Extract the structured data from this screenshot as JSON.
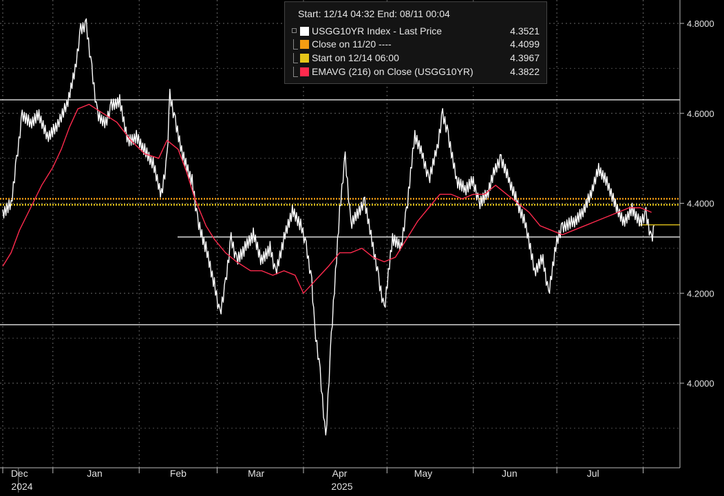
{
  "chart_data": {
    "type": "line",
    "title": "",
    "header": "Start: 12/14 04:32 End: 08/11 00:04",
    "ylim": [
      3.85,
      4.84
    ],
    "y_ticks": [
      "4.8000",
      "4.6000",
      "4.4000",
      "4.2000",
      "4.0000"
    ],
    "y_tick_values": [
      4.8,
      4.6,
      4.4,
      4.2,
      4.0
    ],
    "x_tick_labels": [
      "Dec",
      "Jan",
      "Feb",
      "Mar",
      "Apr",
      "May",
      "Jun",
      "Jul"
    ],
    "x_year_labels": [
      "2024",
      "2025"
    ],
    "x_date_range": [
      "2024-12-14",
      "2025-08-11"
    ],
    "x_ticks_dates": [
      "2024-12-14",
      "2025-01-01",
      "2025-02-01",
      "2025-03-01",
      "2025-04-01",
      "2025-05-01",
      "2025-06-01",
      "2025-07-01",
      "2025-08-01"
    ],
    "grid": true,
    "legend_position": "top-center",
    "legend": [
      {
        "label": "USGG10YR Index - Last Price",
        "value": "4.3521",
        "color": "#ffffff"
      },
      {
        "label": "Close on 11/20 ----",
        "value": "4.4099",
        "color": "#f39c12"
      },
      {
        "label": "Start on 12/14 06:00",
        "value": "4.3967",
        "color": "#e6c619"
      },
      {
        "label": "EMAVG (216)  on Close (USGG10YR)",
        "value": "4.3822",
        "color": "#ff2a4d"
      }
    ],
    "series": [
      {
        "name": "USGG10YR Index - Last Price",
        "color": "#ffffff",
        "x": [
          "2024-12-14",
          "2024-12-17",
          "2024-12-19",
          "2024-12-21",
          "2024-12-24",
          "2024-12-27",
          "2024-12-30",
          "2025-01-02",
          "2025-01-06",
          "2025-01-09",
          "2025-01-11",
          "2025-01-13",
          "2025-01-15",
          "2025-01-17",
          "2025-01-20",
          "2025-01-22",
          "2025-01-25",
          "2025-01-28",
          "2025-01-31",
          "2025-02-03",
          "2025-02-06",
          "2025-02-09",
          "2025-02-11",
          "2025-02-12",
          "2025-02-14",
          "2025-02-17",
          "2025-02-20",
          "2025-02-22",
          "2025-02-25",
          "2025-02-28",
          "2025-03-02",
          "2025-03-04",
          "2025-03-06",
          "2025-03-08",
          "2025-03-11",
          "2025-03-14",
          "2025-03-17",
          "2025-03-20",
          "2025-03-22",
          "2025-03-25",
          "2025-03-28",
          "2025-03-31",
          "2025-04-02",
          "2025-04-04",
          "2025-04-05",
          "2025-04-07",
          "2025-04-09",
          "2025-04-11",
          "2025-04-14",
          "2025-04-16",
          "2025-04-18",
          "2025-04-21",
          "2025-04-23",
          "2025-04-26",
          "2025-04-28",
          "2025-04-30",
          "2025-05-03",
          "2025-05-06",
          "2025-05-08",
          "2025-05-11",
          "2025-05-14",
          "2025-05-16",
          "2025-05-19",
          "2025-05-21",
          "2025-05-23",
          "2025-05-26",
          "2025-05-29",
          "2025-06-01",
          "2025-06-03",
          "2025-06-06",
          "2025-06-09",
          "2025-06-11",
          "2025-06-14",
          "2025-06-17",
          "2025-06-20",
          "2025-06-23",
          "2025-06-26",
          "2025-06-28",
          "2025-07-01",
          "2025-07-03",
          "2025-07-07",
          "2025-07-10",
          "2025-07-13",
          "2025-07-16",
          "2025-07-19",
          "2025-07-22",
          "2025-07-25",
          "2025-07-28",
          "2025-07-31",
          "2025-08-02",
          "2025-08-04",
          "2025-08-05"
        ],
        "y": [
          4.38,
          4.4,
          4.5,
          4.6,
          4.58,
          4.6,
          4.55,
          4.57,
          4.62,
          4.7,
          4.79,
          4.8,
          4.7,
          4.6,
          4.58,
          4.62,
          4.63,
          4.54,
          4.55,
          4.52,
          4.49,
          4.42,
          4.5,
          4.64,
          4.58,
          4.5,
          4.45,
          4.36,
          4.3,
          4.22,
          4.15,
          4.22,
          4.32,
          4.27,
          4.3,
          4.33,
          4.27,
          4.3,
          4.24,
          4.32,
          4.38,
          4.35,
          4.3,
          4.22,
          4.12,
          4.02,
          3.87,
          4.1,
          4.38,
          4.5,
          4.35,
          4.38,
          4.4,
          4.3,
          4.23,
          4.16,
          4.32,
          4.3,
          4.38,
          4.55,
          4.5,
          4.45,
          4.52,
          4.6,
          4.55,
          4.45,
          4.43,
          4.45,
          4.4,
          4.42,
          4.48,
          4.5,
          4.45,
          4.4,
          4.35,
          4.25,
          4.28,
          4.2,
          4.32,
          4.35,
          4.36,
          4.38,
          4.42,
          4.48,
          4.45,
          4.4,
          4.36,
          4.39,
          4.36,
          4.38,
          4.32,
          4.35
        ]
      },
      {
        "name": "EMAVG (216)  on Close (USGG10YR)",
        "color": "#ff2a4d",
        "x": [
          "2024-12-14",
          "2024-12-17",
          "2024-12-20",
          "2024-12-24",
          "2024-12-28",
          "2025-01-01",
          "2025-01-04",
          "2025-01-07",
          "2025-01-10",
          "2025-01-14",
          "2025-01-19",
          "2025-01-24",
          "2025-01-29",
          "2025-02-03",
          "2025-02-08",
          "2025-02-11",
          "2025-02-15",
          "2025-02-18",
          "2025-02-21",
          "2025-02-25",
          "2025-02-28",
          "2025-03-04",
          "2025-03-08",
          "2025-03-13",
          "2025-03-17",
          "2025-03-21",
          "2025-03-25",
          "2025-03-29",
          "2025-04-01",
          "2025-04-04",
          "2025-04-07",
          "2025-04-10",
          "2025-04-14",
          "2025-04-18",
          "2025-04-22",
          "2025-04-26",
          "2025-04-30",
          "2025-05-04",
          "2025-05-08",
          "2025-05-12",
          "2025-05-16",
          "2025-05-20",
          "2025-05-24",
          "2025-05-28",
          "2025-06-01",
          "2025-06-05",
          "2025-06-09",
          "2025-06-13",
          "2025-06-17",
          "2025-06-21",
          "2025-06-25",
          "2025-06-29",
          "2025-07-03",
          "2025-07-07",
          "2025-07-11",
          "2025-07-15",
          "2025-07-19",
          "2025-07-23",
          "2025-07-27",
          "2025-07-31",
          "2025-08-04"
        ],
        "y": [
          4.26,
          4.29,
          4.34,
          4.39,
          4.44,
          4.48,
          4.52,
          4.57,
          4.61,
          4.62,
          4.6,
          4.58,
          4.54,
          4.51,
          4.5,
          4.54,
          4.52,
          4.47,
          4.41,
          4.35,
          4.32,
          4.29,
          4.27,
          4.25,
          4.25,
          4.24,
          4.25,
          4.24,
          4.2,
          4.22,
          4.24,
          4.26,
          4.29,
          4.29,
          4.3,
          4.28,
          4.27,
          4.28,
          4.32,
          4.36,
          4.39,
          4.42,
          4.42,
          4.41,
          4.42,
          4.42,
          4.44,
          4.42,
          4.4,
          4.38,
          4.35,
          4.34,
          4.33,
          4.34,
          4.35,
          4.36,
          4.37,
          4.38,
          4.39,
          4.39,
          4.38
        ]
      }
    ],
    "reference_lines": [
      {
        "name": "Close on 11/20 ----",
        "y": 4.4099,
        "color": "#f39c12",
        "style": "dotted"
      },
      {
        "name": "Start on 12/14 06:00",
        "y": 4.3967,
        "color": "#e6c619",
        "style": "dotted"
      },
      {
        "name": "last-price-marker",
        "y": 4.3521,
        "color": "#e6c619",
        "style": "solid"
      },
      {
        "name": "level-4.63",
        "y": 4.63,
        "color": "#ffffff",
        "style": "solid"
      },
      {
        "name": "level-4.325",
        "y": 4.325,
        "color": "#ffffff",
        "style": "solid"
      },
      {
        "name": "level-4.13",
        "y": 4.13,
        "color": "#ffffff",
        "style": "solid"
      }
    ]
  }
}
